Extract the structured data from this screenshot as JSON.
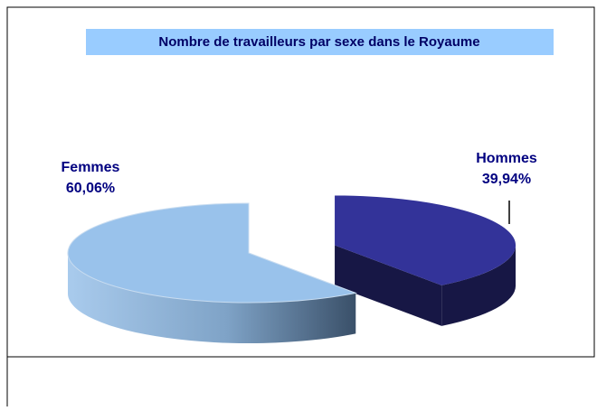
{
  "chart_data": {
    "type": "pie",
    "title": "Nombre de travailleurs par sexe dans le Royaume",
    "categories": [
      "Hommes",
      "Femmes"
    ],
    "values": [
      39.94,
      60.06
    ],
    "value_labels": [
      "39,94%",
      "60,06%"
    ],
    "colors": [
      "#333399",
      "#99c2eb"
    ],
    "exploded": [
      true,
      false
    ],
    "3d": true
  }
}
